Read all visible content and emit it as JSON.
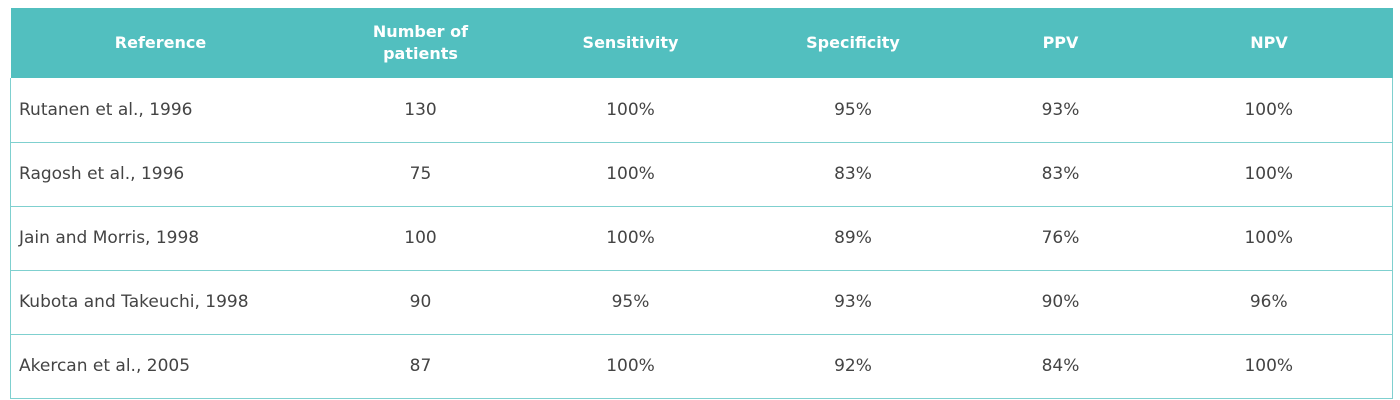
{
  "headers": {
    "reference": "Reference",
    "patients": "Number of patients",
    "sensitivity": "Sensitivity",
    "specificity": "Specificity",
    "ppv": "PPV",
    "npv": "NPV"
  },
  "rows": [
    {
      "reference": "Rutanen et al., 1996",
      "patients": "130",
      "sensitivity": "100%",
      "specificity": "95%",
      "ppv": "93%",
      "npv": "100%"
    },
    {
      "reference": "Ragosh et al., 1996",
      "patients": "75",
      "sensitivity": "100%",
      "specificity": "83%",
      "ppv": "83%",
      "npv": "100%"
    },
    {
      "reference": "Jain and Morris, 1998",
      "patients": "100",
      "sensitivity": "100%",
      "specificity": "89%",
      "ppv": "76%",
      "npv": "100%"
    },
    {
      "reference": "Kubota and Takeuchi, 1998",
      "patients": "90",
      "sensitivity": "95%",
      "specificity": "93%",
      "ppv": "90%",
      "npv": "96%"
    },
    {
      "reference": "Akercan et al., 2005",
      "patients": "87",
      "sensitivity": "100%",
      "specificity": "92%",
      "ppv": "84%",
      "npv": "100%"
    }
  ]
}
